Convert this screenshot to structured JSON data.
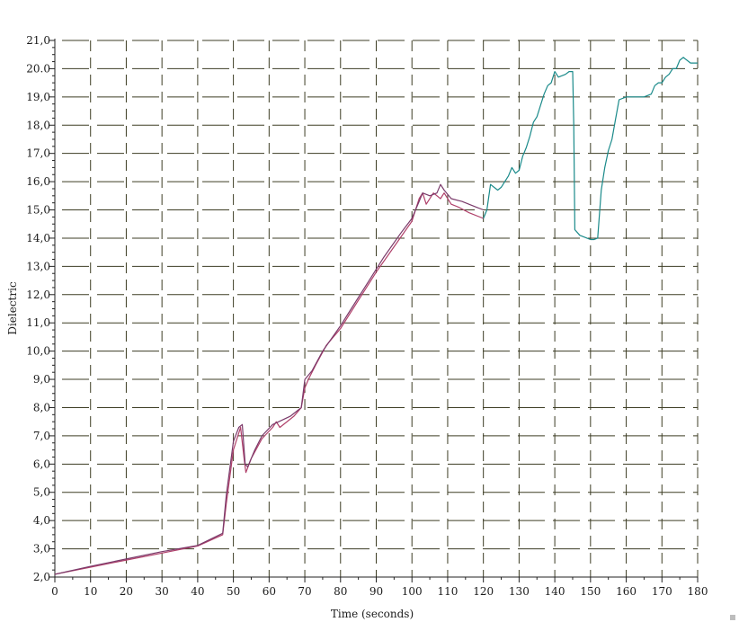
{
  "chart_data": {
    "type": "line",
    "title": "",
    "xlabel": "Time (seconds)",
    "ylabel": "Dielectric",
    "xlim": [
      0,
      180
    ],
    "ylim": [
      2.0,
      21.0
    ],
    "x_ticks": [
      "0",
      "10",
      "20",
      "30",
      "40",
      "50",
      "60",
      "70",
      "80",
      "90",
      "100",
      "110",
      "120",
      "130",
      "140",
      "150",
      "160",
      "170",
      "180"
    ],
    "y_ticks": [
      "2,0",
      "3,0",
      "4,0",
      "5,0",
      "6,0",
      "7,0",
      "8,0",
      "9,0",
      "10,0",
      "11,0",
      "12,0",
      "13,0",
      "14,0",
      "15,0",
      "16,0",
      "17,0",
      "18,0",
      "19,0",
      "20.0",
      "21,0"
    ],
    "grid": "dashed crosshair",
    "legend": "none",
    "series": [
      {
        "color": "#b0406a",
        "points": [
          [
            0,
            2.1
          ],
          [
            10,
            2.35
          ],
          [
            20,
            2.6
          ],
          [
            30,
            2.85
          ],
          [
            40,
            3.1
          ],
          [
            47,
            3.5
          ],
          [
            48,
            4.6
          ],
          [
            50,
            6.5
          ],
          [
            52,
            7.3
          ],
          [
            53,
            6.2
          ],
          [
            53.5,
            5.7
          ],
          [
            55,
            6.2
          ],
          [
            58,
            6.9
          ],
          [
            61,
            7.3
          ],
          [
            62,
            7.5
          ],
          [
            63,
            7.3
          ],
          [
            67,
            7.7
          ],
          [
            69,
            8.0
          ],
          [
            70,
            8.7
          ],
          [
            71,
            9.0
          ],
          [
            73,
            9.5
          ],
          [
            76,
            10.2
          ],
          [
            80,
            10.8
          ],
          [
            82,
            11.2
          ],
          [
            86,
            12.0
          ],
          [
            90,
            12.8
          ],
          [
            95,
            13.7
          ],
          [
            100,
            14.6
          ],
          [
            101,
            15.0
          ],
          [
            102,
            15.4
          ],
          [
            103,
            15.6
          ],
          [
            104,
            15.2
          ],
          [
            106,
            15.6
          ],
          [
            108,
            15.4
          ],
          [
            109,
            15.6
          ],
          [
            111,
            15.2
          ],
          [
            113,
            15.1
          ],
          [
            116,
            14.9
          ],
          [
            120,
            14.7
          ]
        ]
      },
      {
        "color": "#7a3a6a",
        "points": [
          [
            0,
            2.1
          ],
          [
            10,
            2.38
          ],
          [
            20,
            2.64
          ],
          [
            30,
            2.9
          ],
          [
            40,
            3.12
          ],
          [
            47,
            3.55
          ],
          [
            48,
            4.9
          ],
          [
            50,
            6.8
          ],
          [
            51.5,
            7.3
          ],
          [
            52.5,
            7.4
          ],
          [
            53.3,
            6.0
          ],
          [
            54,
            5.9
          ],
          [
            56,
            6.5
          ],
          [
            58,
            7.0
          ],
          [
            61,
            7.4
          ],
          [
            66,
            7.7
          ],
          [
            69,
            8.0
          ],
          [
            70,
            9.0
          ],
          [
            72,
            9.3
          ],
          [
            75,
            10.0
          ],
          [
            80,
            10.9
          ],
          [
            83,
            11.5
          ],
          [
            88,
            12.5
          ],
          [
            92,
            13.3
          ],
          [
            97,
            14.2
          ],
          [
            100,
            14.7
          ],
          [
            102,
            15.3
          ],
          [
            103,
            15.6
          ],
          [
            105,
            15.5
          ],
          [
            107,
            15.6
          ],
          [
            108,
            15.9
          ],
          [
            109,
            15.7
          ],
          [
            111,
            15.4
          ],
          [
            114,
            15.3
          ],
          [
            118,
            15.1
          ],
          [
            120,
            15.0
          ]
        ]
      },
      {
        "color": "#1a8a8a",
        "points": [
          [
            120,
            14.7
          ],
          [
            121,
            15.0
          ],
          [
            122,
            15.9
          ],
          [
            123,
            15.8
          ],
          [
            124,
            15.7
          ],
          [
            125,
            15.8
          ],
          [
            126,
            16.0
          ],
          [
            127,
            16.2
          ],
          [
            128,
            16.5
          ],
          [
            129,
            16.3
          ],
          [
            130,
            16.4
          ],
          [
            131,
            16.9
          ],
          [
            132,
            17.2
          ],
          [
            133,
            17.6
          ],
          [
            134,
            18.1
          ],
          [
            135,
            18.3
          ],
          [
            136,
            18.7
          ],
          [
            137,
            19.1
          ],
          [
            138,
            19.4
          ],
          [
            139,
            19.5
          ],
          [
            140,
            19.9
          ],
          [
            141,
            19.7
          ],
          [
            143,
            19.8
          ],
          [
            144,
            19.9
          ],
          [
            145,
            19.9
          ],
          [
            145.3,
            18.0
          ],
          [
            145.6,
            14.3
          ],
          [
            147,
            14.1
          ],
          [
            149,
            14.0
          ],
          [
            150,
            13.95
          ],
          [
            151,
            13.95
          ],
          [
            152,
            14.0
          ],
          [
            153,
            15.7
          ],
          [
            154,
            16.5
          ],
          [
            155,
            17.1
          ],
          [
            156,
            17.5
          ],
          [
            157,
            18.2
          ],
          [
            158,
            18.9
          ],
          [
            160,
            19.0
          ],
          [
            165,
            19.0
          ],
          [
            167,
            19.1
          ],
          [
            168,
            19.4
          ],
          [
            169,
            19.5
          ],
          [
            170,
            19.5
          ],
          [
            171,
            19.7
          ],
          [
            172,
            19.8
          ],
          [
            173,
            20.0
          ],
          [
            174,
            20.0
          ],
          [
            175,
            20.3
          ],
          [
            176,
            20.4
          ],
          [
            178,
            20.2
          ],
          [
            180,
            20.2
          ]
        ]
      }
    ]
  }
}
